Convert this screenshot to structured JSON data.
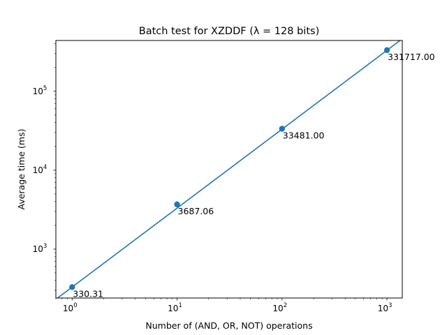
{
  "chart_data": {
    "type": "line",
    "title": "Batch test for XZDDF (λ = 128 bits)",
    "xlabel": "Number of (AND, OR, NOT) operations",
    "ylabel": "Average time (ms)",
    "xscale": "log",
    "yscale": "log",
    "xlim": [
      0.7,
      1400
    ],
    "ylim": [
      240,
      440000
    ],
    "x_ticks": [
      {
        "value": 1,
        "base": "10",
        "exp": "0"
      },
      {
        "value": 10,
        "base": "10",
        "exp": "1"
      },
      {
        "value": 100,
        "base": "10",
        "exp": "2"
      },
      {
        "value": 1000,
        "base": "10",
        "exp": "3"
      }
    ],
    "y_ticks": [
      {
        "value": 1000,
        "base": "10",
        "exp": "3"
      },
      {
        "value": 10000,
        "base": "10",
        "exp": "4"
      },
      {
        "value": 100000,
        "base": "10",
        "exp": "5"
      }
    ],
    "grid": false,
    "legend": "none",
    "series": [
      {
        "color": "#1f77b4",
        "marker": "circle",
        "x": [
          1,
          10,
          100,
          1000
        ],
        "y": [
          330.31,
          3687.06,
          33481.0,
          331717.0
        ],
        "labels": [
          "330.31",
          "3687.06",
          "33481.00",
          "331717.00"
        ]
      }
    ],
    "fit_line": {
      "color": "#1f77b4",
      "slope": 1.0,
      "intercept": 330.31
    }
  }
}
